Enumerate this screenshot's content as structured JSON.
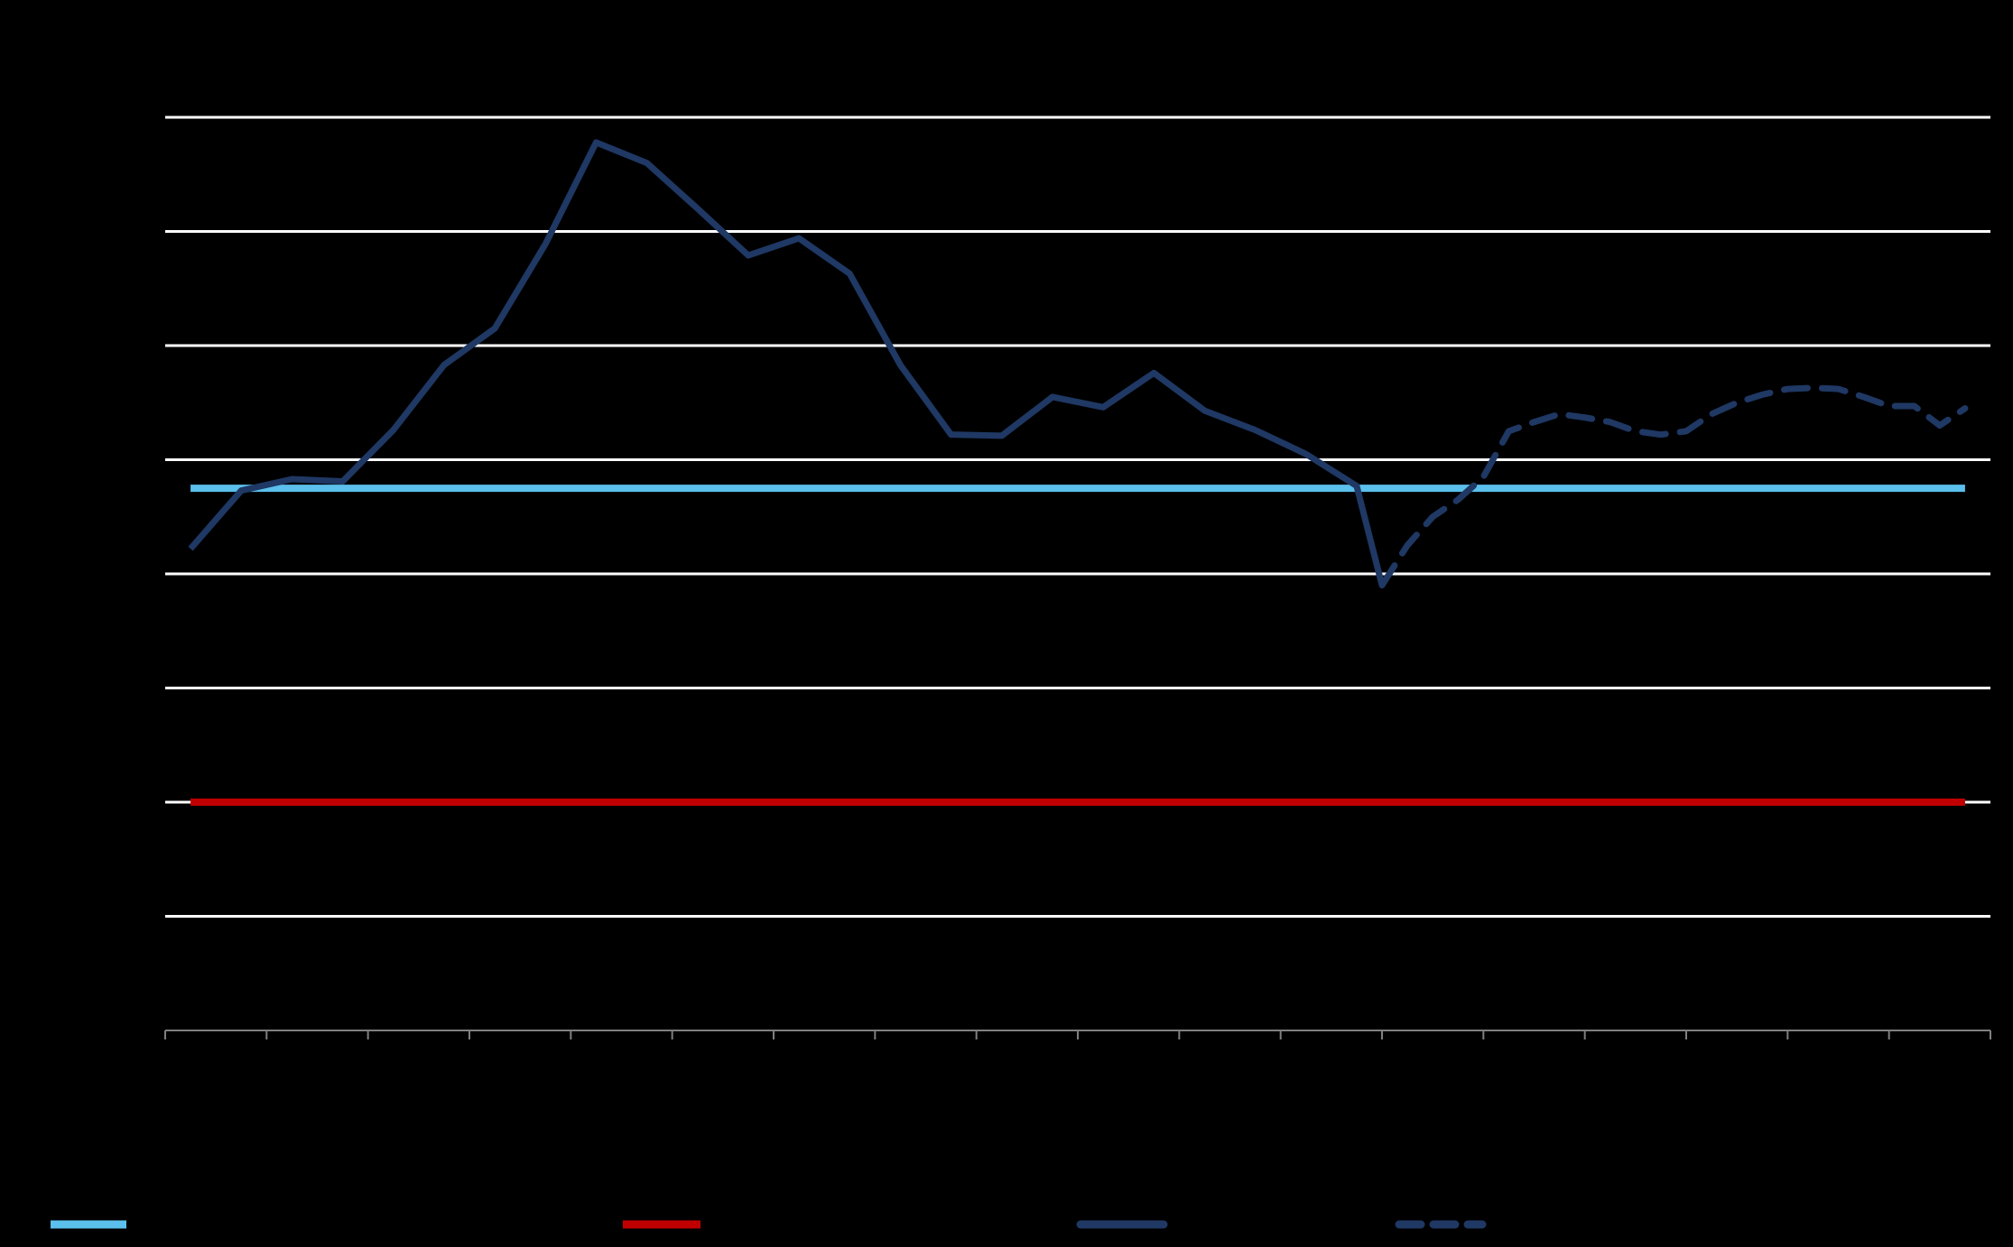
{
  "chart_data": {
    "type": "line",
    "title": "",
    "xlabel": "",
    "ylabel": "",
    "ylim": [
      0,
      8
    ],
    "y_gridlines": [
      1,
      2,
      3,
      4,
      5,
      6,
      7,
      8
    ],
    "x_ticks": [
      0,
      2,
      4,
      6,
      8,
      10,
      12,
      14,
      16,
      18,
      20,
      22,
      24,
      26,
      28,
      30,
      32,
      34,
      36
    ],
    "xlim": [
      0,
      36
    ],
    "legend_position": "bottom",
    "grid": true,
    "series": [
      {
        "key": "reference-light-blue",
        "name": "",
        "style": "solid",
        "color": "#5bc0eb",
        "x": [
          0.5,
          35.5
        ],
        "y": [
          4.75,
          4.75
        ]
      },
      {
        "key": "reference-red",
        "name": "",
        "style": "solid",
        "color": "#c00000",
        "x": [
          0.5,
          35.5
        ],
        "y": [
          2.0,
          2.0
        ]
      },
      {
        "key": "actual",
        "name": "",
        "style": "solid",
        "color": "#1f3864",
        "x": [
          0.5,
          1.5,
          2.5,
          3.5,
          4.5,
          5.5,
          6.5,
          7.5,
          8.5,
          9.5,
          10.5,
          11.5,
          12.5,
          13.5,
          14.5,
          15.5,
          16.5,
          17.5,
          18.5,
          19.5,
          20.5,
          21.5,
          22.5,
          23.5,
          24.0
        ],
        "y": [
          4.22,
          4.73,
          4.83,
          4.81,
          5.26,
          5.83,
          6.15,
          6.89,
          7.78,
          7.6,
          7.2,
          6.79,
          6.94,
          6.63,
          5.83,
          5.22,
          5.21,
          5.55,
          5.46,
          5.76,
          5.43,
          5.26,
          5.05,
          4.77,
          3.9
        ]
      },
      {
        "key": "projection",
        "name": "",
        "style": "dashed",
        "color": "#1f3864",
        "x": [
          24.0,
          24.5,
          25.0,
          25.5,
          26.0,
          26.5,
          27.0,
          27.5,
          28.0,
          28.5,
          29.0,
          29.5,
          30.0,
          30.5,
          31.0,
          31.5,
          32.0,
          32.5,
          33.0,
          33.5,
          34.0,
          34.5,
          35.0,
          35.5
        ],
        "y": [
          3.9,
          4.25,
          4.5,
          4.65,
          4.85,
          5.25,
          5.33,
          5.4,
          5.37,
          5.33,
          5.25,
          5.22,
          5.25,
          5.4,
          5.5,
          5.57,
          5.62,
          5.63,
          5.62,
          5.55,
          5.47,
          5.47,
          5.3,
          5.45
        ]
      }
    ]
  }
}
